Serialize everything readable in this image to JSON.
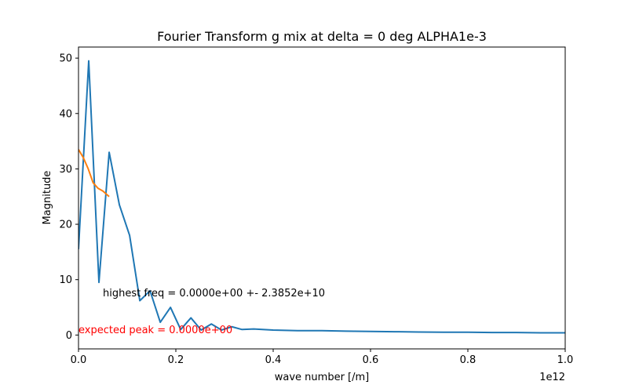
{
  "chart_data": {
    "type": "line",
    "title": "Fourier Transform g mix at delta = 0 deg ALPHA1e-3",
    "xlabel": "wave number [/m]",
    "ylabel": "Magnitude",
    "x_offset_label": "1e12",
    "x_scale": 1000000000000.0,
    "xlim": [
      0,
      1.0
    ],
    "ylim": [
      -2.5,
      52
    ],
    "x_ticks": [
      0,
      0.2,
      0.4,
      0.6,
      0.8,
      1.0
    ],
    "x_tick_labels": [
      "0.0",
      "0.2",
      "0.4",
      "0.6",
      "0.8",
      "1.0"
    ],
    "y_ticks": [
      0,
      10,
      20,
      30,
      40,
      50
    ],
    "y_tick_labels": [
      "0",
      "10",
      "20",
      "30",
      "40",
      "50"
    ],
    "grid": false,
    "series": [
      {
        "color": "#1f77b4",
        "x": [
          0.0,
          0.021,
          0.042,
          0.063,
          0.084,
          0.105,
          0.126,
          0.147,
          0.168,
          0.189,
          0.21,
          0.231,
          0.252,
          0.273,
          0.294,
          0.315,
          0.336,
          0.36,
          0.4,
          0.45,
          0.5,
          0.55,
          0.6,
          0.65,
          0.7,
          0.75,
          0.8,
          0.85,
          0.9,
          0.95,
          1.0
        ],
        "y": [
          15.5,
          49.5,
          9.5,
          33.0,
          23.5,
          18.0,
          6.2,
          8.0,
          2.3,
          5.0,
          1.0,
          3.1,
          0.9,
          2.0,
          0.9,
          1.5,
          1.0,
          1.1,
          0.9,
          0.8,
          0.8,
          0.7,
          0.65,
          0.6,
          0.55,
          0.5,
          0.5,
          0.45,
          0.45,
          0.4,
          0.4
        ]
      },
      {
        "color": "#ff7f0e",
        "x": [
          0.0,
          0.01,
          0.02,
          0.03,
          0.04,
          0.05,
          0.063
        ],
        "y": [
          33.5,
          32.0,
          30.0,
          27.5,
          26.5,
          26.0,
          25.0
        ]
      }
    ],
    "annotations": [
      {
        "text": "highest freq = 0.0000e+00 +- 2.3852e+10",
        "x": 0.05,
        "y": 7.0,
        "color": "#000000"
      },
      {
        "text": "expected peak = 0.0000e+00",
        "x": 0.0,
        "y": 0.3,
        "color": "#ff0000"
      }
    ]
  }
}
